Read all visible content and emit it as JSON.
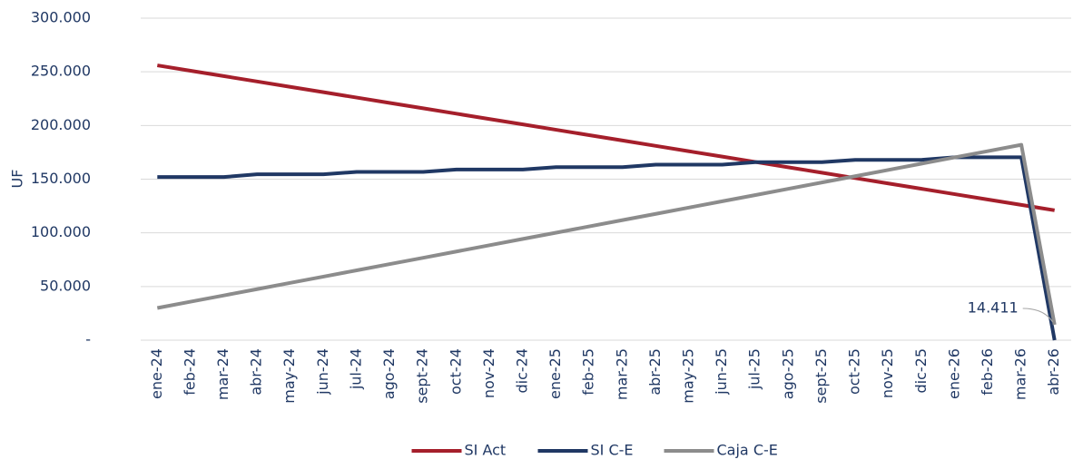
{
  "chart_data": {
    "type": "line",
    "y_label": "UF",
    "categories": [
      "ene-24",
      "feb-24",
      "mar-24",
      "abr-24",
      "may-24",
      "jun-24",
      "jul-24",
      "ago-24",
      "sept-24",
      "oct-24",
      "nov-24",
      "dic-24",
      "ene-25",
      "feb-25",
      "mar-25",
      "abr-25",
      "may-25",
      "jun-25",
      "jul-25",
      "ago-25",
      "sept-25",
      "oct-25",
      "nov-25",
      "dic-25",
      "ene-26",
      "feb-26",
      "mar-26",
      "abr-26"
    ],
    "series": [
      {
        "name": "SI Act",
        "color": "#a51f2b",
        "values": [
          256000,
          251000,
          246000,
          241000,
          236000,
          231000,
          226000,
          221000,
          216000,
          211000,
          206000,
          201000,
          196000,
          191000,
          186000,
          181000,
          176000,
          171000,
          166000,
          161000,
          156000,
          151000,
          146000,
          141000,
          136000,
          131000,
          126000,
          121000
        ]
      },
      {
        "name": "SI C-E",
        "color": "#203864",
        "values": [
          152000,
          152000,
          152000,
          154500,
          154500,
          154500,
          156800,
          156800,
          156800,
          159000,
          159000,
          159000,
          161200,
          161200,
          161200,
          163500,
          163500,
          163500,
          165800,
          165800,
          165800,
          168000,
          168000,
          168000,
          170400,
          170400,
          170400,
          0
        ]
      },
      {
        "name": "Caja C-E",
        "color": "#8c8c8c",
        "values": [
          30000,
          35846,
          41692,
          47538,
          53385,
          59231,
          65077,
          70923,
          76769,
          82615,
          88462,
          94308,
          100154,
          106000,
          111846,
          117692,
          123538,
          129385,
          135231,
          141077,
          146923,
          152769,
          158615,
          164462,
          170308,
          176154,
          182000,
          14411
        ],
        "value_labels": [
          null,
          null,
          null,
          null,
          null,
          null,
          null,
          null,
          null,
          null,
          null,
          null,
          null,
          null,
          null,
          null,
          null,
          null,
          null,
          null,
          null,
          null,
          null,
          null,
          null,
          null,
          null,
          "14.411"
        ]
      }
    ],
    "ylim": [
      0,
      300000
    ],
    "yticks": [
      {
        "value": 0,
        "label": "-"
      },
      {
        "value": 50000,
        "label": "50.000"
      },
      {
        "value": 100000,
        "label": "100.000"
      },
      {
        "value": 150000,
        "label": "150.000"
      },
      {
        "value": 200000,
        "label": "200.000"
      },
      {
        "value": 250000,
        "label": "250.000"
      },
      {
        "value": 300000,
        "label": "300.000"
      }
    ],
    "grid": true,
    "legend": "bottom"
  }
}
